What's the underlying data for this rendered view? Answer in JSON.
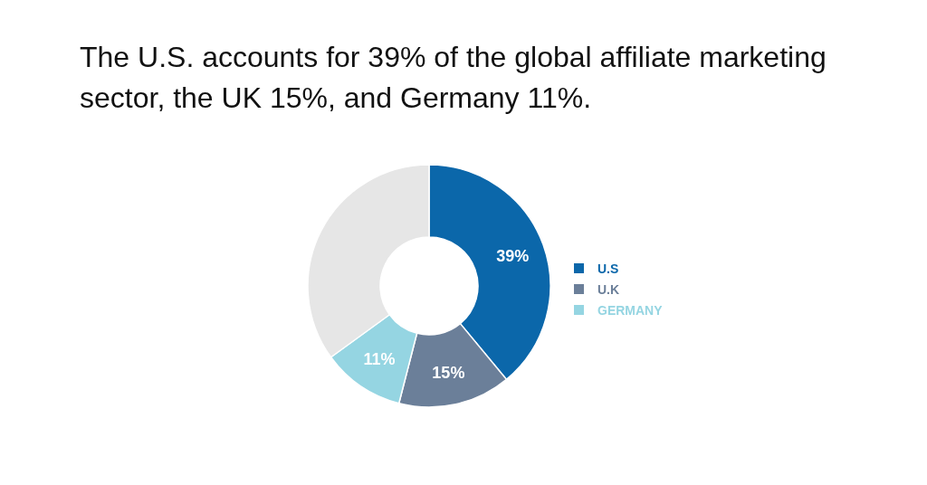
{
  "chart_data": {
    "type": "donut",
    "title": "The U.S. accounts for 39% of the global affiliate marketing sector, the UK 15%, and Germany 11%.",
    "categories": [
      "U.S",
      "U.K",
      "GERMANY",
      null
    ],
    "values": [
      39,
      15,
      11,
      35
    ],
    "colors": [
      "#0b67aa",
      "#6b7f99",
      "#95d5e2",
      "#e6e6e6"
    ],
    "value_labels": [
      "39%",
      "15%",
      "11%",
      null
    ],
    "legend": "right"
  }
}
